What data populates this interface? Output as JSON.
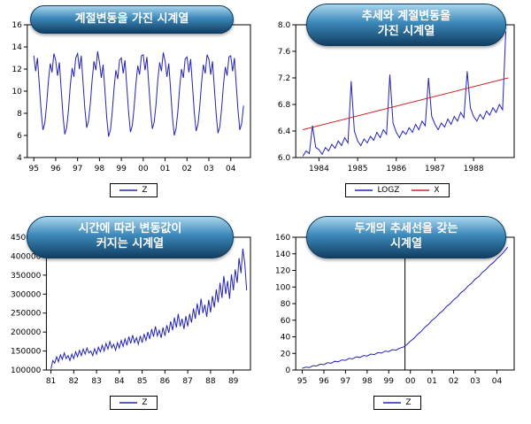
{
  "page": {
    "background": "#ffffff",
    "line_blue": "#2222bb",
    "line_red": "#cc2222"
  },
  "chart_data": [
    {
      "type": "line",
      "title": "계절변동을 가진 시계열",
      "title_lines": [
        "계절변동을 가진 시계열"
      ],
      "xlim": [
        1994.7,
        2004.9
      ],
      "ylim": [
        4,
        16
      ],
      "yticks": [
        4,
        6,
        8,
        10,
        12,
        14,
        16
      ],
      "ytick_labels": [
        "4",
        "6",
        "8",
        "10",
        "12",
        "14",
        "16"
      ],
      "xticks": [
        1995,
        1996,
        1997,
        1998,
        1999,
        2000,
        2001,
        2002,
        2003,
        2004
      ],
      "xtick_labels": [
        "95",
        "96",
        "97",
        "98",
        "99",
        "00",
        "01",
        "02",
        "03",
        "04"
      ],
      "x_start": 1995.0,
      "x_step": 0.0833333,
      "series": [
        {
          "name": "Z",
          "color": "#2222bb",
          "values": [
            13.2,
            11.8,
            13.0,
            10.6,
            8.2,
            6.5,
            7.1,
            8.7,
            10.9,
            12.5,
            11.7,
            13.4,
            12.8,
            11.4,
            12.6,
            10.2,
            7.8,
            6.1,
            6.7,
            8.3,
            10.5,
            12.1,
            11.3,
            13.0,
            13.4,
            12.0,
            13.2,
            10.8,
            8.4,
            6.7,
            7.3,
            8.9,
            11.1,
            12.7,
            11.9,
            13.6,
            12.6,
            11.2,
            12.4,
            10.0,
            7.6,
            5.9,
            6.5,
            8.1,
            10.3,
            11.9,
            11.1,
            12.8,
            13.0,
            11.6,
            12.8,
            10.4,
            8.0,
            6.3,
            6.9,
            8.5,
            10.7,
            12.3,
            11.5,
            13.2,
            13.3,
            11.9,
            13.1,
            10.7,
            8.3,
            6.6,
            7.2,
            8.8,
            11.0,
            12.6,
            11.8,
            13.5,
            12.7,
            11.3,
            12.5,
            10.1,
            7.7,
            6.0,
            6.6,
            8.2,
            10.4,
            12.0,
            11.2,
            12.9,
            13.1,
            11.7,
            12.9,
            10.5,
            8.1,
            6.4,
            7.0,
            8.6,
            10.8,
            12.4,
            11.6,
            13.3,
            12.9,
            11.5,
            12.7,
            10.3,
            7.9,
            6.2,
            6.8,
            8.4,
            10.6,
            12.2,
            11.4,
            13.1,
            13.2,
            11.8,
            13.0,
            10.6,
            8.2,
            6.5,
            7.1,
            8.7
          ]
        }
      ]
    },
    {
      "type": "line",
      "title": "추세와 계절변동을 가진 시계열",
      "title_lines": [
        "추세와 계절변동을",
        "가진 시계열"
      ],
      "xlim": [
        1983.4,
        1989.05
      ],
      "ylim": [
        6.0,
        8.0
      ],
      "yticks": [
        6.0,
        6.4,
        6.8,
        7.2,
        7.6,
        8.0
      ],
      "ytick_labels": [
        "6.0",
        "6.4",
        "6.8",
        "7.2",
        "7.6",
        "8.0"
      ],
      "xticks": [
        1984,
        1985,
        1986,
        1987,
        1988
      ],
      "xtick_labels": [
        "1984",
        "1985",
        "1986",
        "1987",
        "1988"
      ],
      "x_start": 1983.5833,
      "x_step": 0.0833333,
      "series": [
        {
          "name": "LOGZ",
          "color": "#2222bb",
          "values": [
            6.02,
            6.1,
            6.06,
            6.48,
            6.15,
            6.12,
            6.05,
            6.15,
            6.1,
            6.2,
            6.14,
            6.25,
            6.18,
            6.3,
            6.22,
            7.15,
            6.4,
            6.25,
            6.18,
            6.28,
            6.22,
            6.32,
            6.26,
            6.38,
            6.3,
            6.42,
            6.35,
            7.25,
            6.52,
            6.38,
            6.3,
            6.4,
            6.35,
            6.45,
            6.38,
            6.5,
            6.42,
            6.55,
            6.48,
            7.2,
            6.62,
            6.5,
            6.42,
            6.52,
            6.46,
            6.58,
            6.5,
            6.62,
            6.55,
            6.68,
            6.6,
            7.3,
            6.75,
            6.62,
            6.55,
            6.65,
            6.58,
            6.7,
            6.64,
            6.75,
            6.68,
            6.8,
            6.72,
            7.9
          ]
        },
        {
          "name": "X",
          "color": "#cc2222",
          "x": [
            1983.5833,
            1988.9
          ],
          "values": [
            6.42,
            7.2
          ]
        }
      ]
    },
    {
      "type": "line",
      "title": "시간에 따라 변동값이 커지는 시계열",
      "title_lines": [
        "시간에 따라 변동값이",
        "커지는 시계열"
      ],
      "xlim": [
        1980.8,
        1989.75
      ],
      "ylim": [
        100000,
        450000
      ],
      "yticks": [
        100000,
        150000,
        200000,
        250000,
        300000,
        350000,
        400000,
        450000
      ],
      "ytick_labels": [
        "100000",
        "150000",
        "200000",
        "250000",
        "300000",
        "350000",
        "400000",
        "450000"
      ],
      "xticks": [
        1981,
        1982,
        1983,
        1984,
        1985,
        1986,
        1987,
        1988,
        1989
      ],
      "xtick_labels": [
        "81",
        "82",
        "83",
        "84",
        "85",
        "86",
        "87",
        "88",
        "89"
      ],
      "x_start": 1981.0,
      "x_step": 0.0833333,
      "series": [
        {
          "name": "Z",
          "color": "#2222bb",
          "values": [
            103000,
            125000,
            118000,
            135000,
            122000,
            140000,
            128000,
            145000,
            130000,
            138000,
            125000,
            142000,
            130000,
            148000,
            135000,
            152000,
            138000,
            155000,
            142000,
            158000,
            145000,
            150000,
            138000,
            156000,
            142000,
            160000,
            148000,
            165000,
            150000,
            170000,
            155000,
            175000,
            158000,
            168000,
            152000,
            172000,
            158000,
            178000,
            162000,
            182000,
            165000,
            188000,
            170000,
            192000,
            172000,
            185000,
            168000,
            190000,
            172000,
            195000,
            178000,
            200000,
            182000,
            208000,
            188000,
            215000,
            190000,
            205000,
            185000,
            212000,
            190000,
            218000,
            198000,
            228000,
            205000,
            238000,
            212000,
            248000,
            215000,
            235000,
            208000,
            242000,
            215000,
            248000,
            225000,
            262000,
            235000,
            275000,
            245000,
            288000,
            250000,
            272000,
            240000,
            285000,
            252000,
            295000,
            265000,
            312000,
            278000,
            330000,
            290000,
            348000,
            300000,
            335000,
            288000,
            352000,
            310000,
            365000,
            330000,
            395000,
            355000,
            420000,
            380000,
            310000
          ]
        }
      ]
    },
    {
      "type": "line",
      "title": "두개의 추세선을 갖는 시계열",
      "title_lines": [
        "두개의 추세선을 갖는",
        "시계열"
      ],
      "xlim": [
        1994.7,
        2004.8
      ],
      "ylim": [
        0,
        160
      ],
      "yticks": [
        0,
        20,
        40,
        60,
        80,
        100,
        120,
        140,
        160
      ],
      "ytick_labels": [
        "0",
        "20",
        "40",
        "60",
        "80",
        "100",
        "120",
        "140",
        "160"
      ],
      "xticks": [
        1995,
        1996,
        1997,
        1998,
        1999,
        2000,
        2001,
        2002,
        2003,
        2004
      ],
      "xtick_labels": [
        "95",
        "96",
        "97",
        "98",
        "99",
        "00",
        "01",
        "02",
        "03",
        "04"
      ],
      "x_start": 1995.0,
      "x_step": 0.1666667,
      "vline": 1999.75,
      "series": [
        {
          "name": "Z",
          "color": "#2222bb",
          "values": [
            2.0,
            3.4,
            3.0,
            5.2,
            4.8,
            7.0,
            6.4,
            8.8,
            8.2,
            10.5,
            9.9,
            12.2,
            11.6,
            14.0,
            13.4,
            15.8,
            15.2,
            17.5,
            16.9,
            19.2,
            18.6,
            21.0,
            20.4,
            22.8,
            22.2,
            24.5,
            23.9,
            26.3,
            27.5,
            30.5,
            34.8,
            38.2,
            43.0,
            46.5,
            51.5,
            55.0,
            59.8,
            63.2,
            68.0,
            71.5,
            76.4,
            79.8,
            84.6,
            88.0,
            93.0,
            96.4,
            101.2,
            104.6,
            109.5,
            112.8,
            117.8,
            121.2,
            126.0,
            129.4,
            134.2,
            137.8,
            142.6,
            148.0
          ]
        }
      ]
    }
  ]
}
